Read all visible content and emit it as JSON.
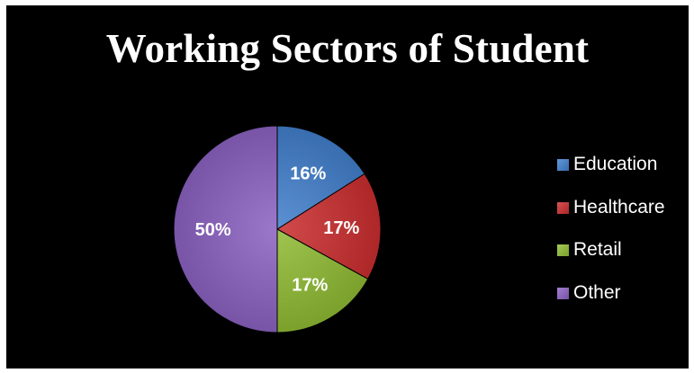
{
  "chart_data": {
    "type": "pie",
    "title": "Working Sectors of Student",
    "categories": [
      "Education",
      "Healthcare",
      "Retail",
      "Other"
    ],
    "values": [
      16,
      17,
      17,
      50
    ],
    "labels": [
      "16%",
      "17%",
      "17%",
      "50%"
    ],
    "colors": [
      "#4a7fc1",
      "#c0393a",
      "#8db33e",
      "#8a66b8"
    ],
    "start_angle_deg": 0,
    "direction": "clockwise",
    "legend_position": "right",
    "background": "#000000"
  }
}
